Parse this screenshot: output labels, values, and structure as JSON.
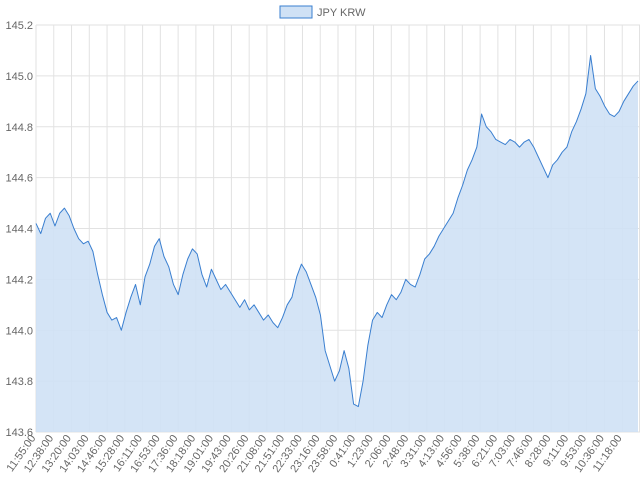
{
  "chart_data": {
    "type": "area",
    "legend": {
      "label": "JPY KRW",
      "placement": "top-center"
    },
    "ylim": [
      143.6,
      145.2
    ],
    "yticks": [
      143.6,
      143.8,
      144.0,
      144.2,
      144.4,
      144.6,
      144.8,
      145.0,
      145.2
    ],
    "ytick_labels": [
      "143.6",
      "143.8",
      "144.0",
      "144.2",
      "144.4",
      "144.6",
      "144.8",
      "145.0",
      "145.2"
    ],
    "xtick_labels": [
      "11:55:00",
      "12:38:00",
      "13:20:00",
      "14:03:00",
      "14:46:00",
      "15:28:00",
      "16:11:00",
      "16:53:00",
      "17:36:00",
      "18:18:00",
      "19:01:00",
      "19:43:00",
      "20:26:00",
      "21:08:00",
      "21:51:00",
      "22:33:00",
      "23:16:00",
      "23:58:00",
      "0:41:00",
      "1:23:00",
      "2:06:00",
      "2:48:00",
      "3:31:00",
      "4:13:00",
      "4:56:00",
      "5:38:00",
      "6:21:00",
      "7:03:00",
      "7:46:00",
      "8:28:00",
      "9:11:00",
      "9:53:00",
      "10:36:00",
      "11:18:00"
    ],
    "grid": true,
    "colors": {
      "line": "#3a7fd0",
      "fill": "#cfe1f5",
      "grid": "#e2e2e2",
      "axis_text": "#666666"
    },
    "series": [
      {
        "name": "JPY KRW",
        "values": [
          144.42,
          144.38,
          144.44,
          144.46,
          144.41,
          144.46,
          144.48,
          144.45,
          144.4,
          144.36,
          144.34,
          144.35,
          144.31,
          144.22,
          144.14,
          144.07,
          144.04,
          144.05,
          144.0,
          144.07,
          144.13,
          144.18,
          144.1,
          144.21,
          144.26,
          144.33,
          144.36,
          144.29,
          144.25,
          144.18,
          144.14,
          144.22,
          144.28,
          144.32,
          144.3,
          144.22,
          144.17,
          144.24,
          144.2,
          144.16,
          144.18,
          144.15,
          144.12,
          144.09,
          144.12,
          144.08,
          144.1,
          144.07,
          144.04,
          144.06,
          144.03,
          144.01,
          144.05,
          144.1,
          144.13,
          144.21,
          144.26,
          144.23,
          144.18,
          144.13,
          144.06,
          143.92,
          143.86,
          143.8,
          143.84,
          143.92,
          143.85,
          143.71,
          143.7,
          143.8,
          143.94,
          144.04,
          144.07,
          144.05,
          144.1,
          144.14,
          144.12,
          144.15,
          144.2,
          144.18,
          144.17,
          144.22,
          144.28,
          144.3,
          144.33,
          144.37,
          144.4,
          144.43,
          144.46,
          144.52,
          144.57,
          144.63,
          144.67,
          144.72,
          144.85,
          144.8,
          144.78,
          144.75,
          144.74,
          144.73,
          144.75,
          144.74,
          144.72,
          144.74,
          144.75,
          144.72,
          144.68,
          144.64,
          144.6,
          144.65,
          144.67,
          144.7,
          144.72,
          144.78,
          144.82,
          144.87,
          144.93,
          145.08,
          144.95,
          144.92,
          144.88,
          144.85,
          144.84,
          144.86,
          144.9,
          144.93,
          144.96,
          144.98
        ]
      }
    ]
  }
}
